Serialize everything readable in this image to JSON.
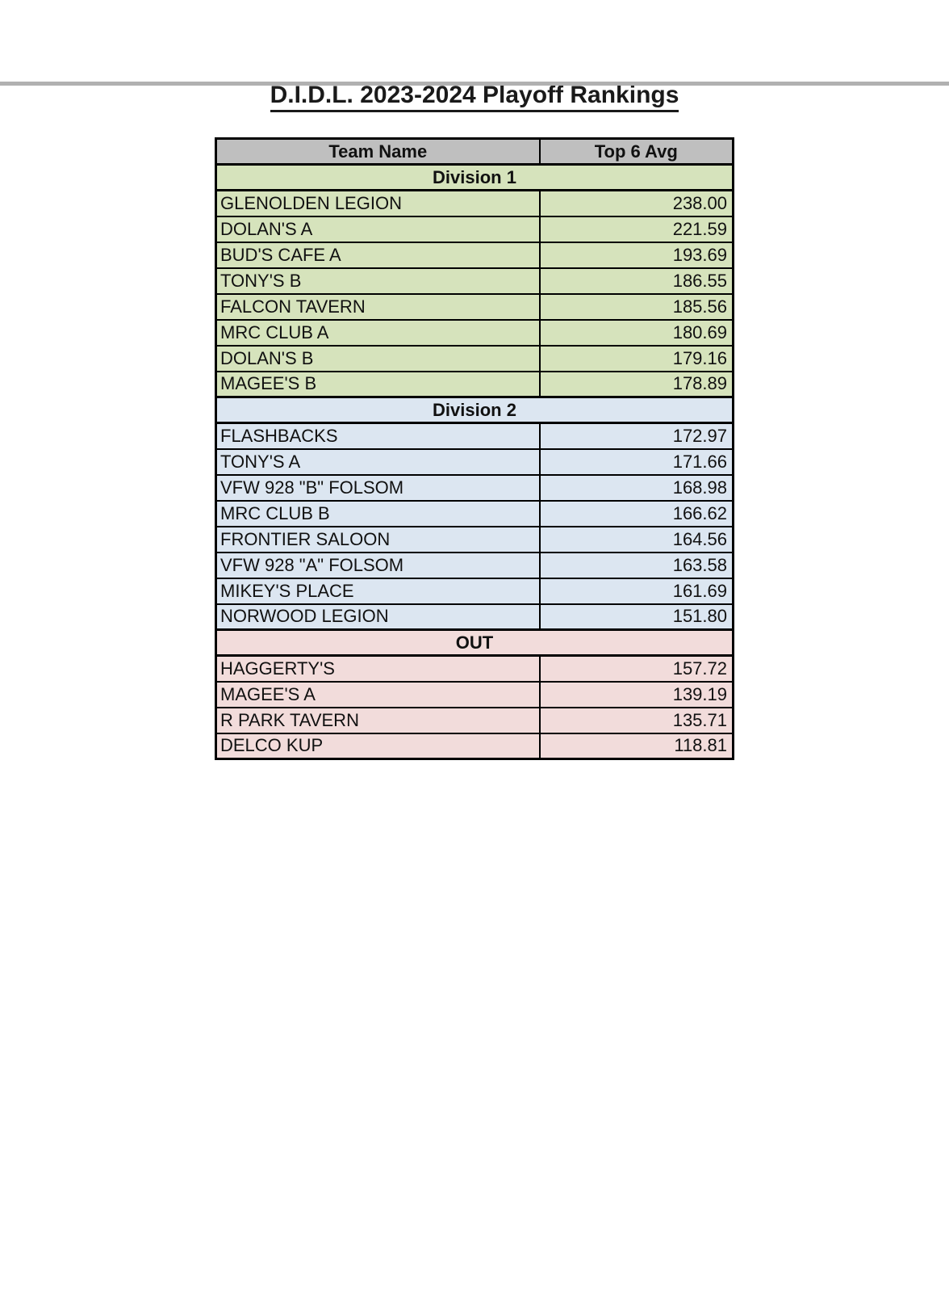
{
  "page": {
    "title": "D.I.D.L. 2023-2024 Playoff Rankings"
  },
  "colors": {
    "header_bg": "#bfbfbf",
    "border": "#000000",
    "top_edge_bar": "#b1b1b1",
    "division1_bg": "#d6e3bc",
    "division2_bg": "#dce6f1",
    "out_bg": "#f2dcdb"
  },
  "table": {
    "columns": [
      "Team Name",
      "Top 6 Avg"
    ],
    "sections": [
      {
        "label": "Division 1",
        "bg": "#d6e3bc",
        "rows": [
          {
            "team": "GLENOLDEN LEGION",
            "avg": "238.00"
          },
          {
            "team": "DOLAN'S A",
            "avg": "221.59"
          },
          {
            "team": "BUD'S CAFE A",
            "avg": "193.69"
          },
          {
            "team": "TONY'S B",
            "avg": "186.55"
          },
          {
            "team": "FALCON TAVERN",
            "avg": "185.56"
          },
          {
            "team": "MRC CLUB A",
            "avg": "180.69"
          },
          {
            "team": "DOLAN'S B",
            "avg": "179.16"
          },
          {
            "team": "MAGEE'S B",
            "avg": "178.89"
          }
        ]
      },
      {
        "label": "Division 2",
        "bg": "#dce6f1",
        "rows": [
          {
            "team": "FLASHBACKS",
            "avg": "172.97"
          },
          {
            "team": "TONY'S A",
            "avg": "171.66"
          },
          {
            "team": "VFW 928 \"B\" FOLSOM",
            "avg": "168.98"
          },
          {
            "team": "MRC CLUB B",
            "avg": "166.62"
          },
          {
            "team": "FRONTIER SALOON",
            "avg": "164.56"
          },
          {
            "team": "VFW 928 \"A\" FOLSOM",
            "avg": "163.58"
          },
          {
            "team": "MIKEY'S PLACE",
            "avg": "161.69"
          },
          {
            "team": "NORWOOD LEGION",
            "avg": "151.80"
          }
        ]
      },
      {
        "label": "OUT",
        "bg": "#f2dcdb",
        "rows": [
          {
            "team": "HAGGERTY'S",
            "avg": "157.72"
          },
          {
            "team": "MAGEE'S A",
            "avg": "139.19"
          },
          {
            "team": "R PARK TAVERN",
            "avg": "135.71"
          },
          {
            "team": "DELCO KUP",
            "avg": "118.81"
          }
        ]
      }
    ]
  }
}
